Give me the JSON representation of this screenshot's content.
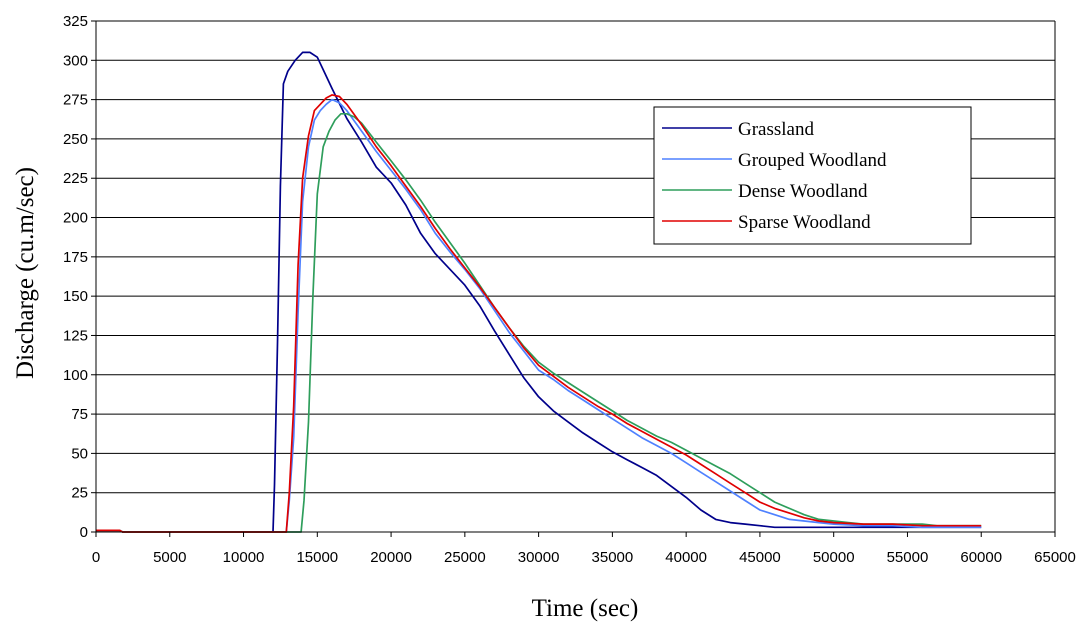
{
  "chart_data": {
    "type": "line",
    "title": "",
    "xlabel": "Time (sec)",
    "ylabel": "Discharge (cu.m/sec)",
    "xlim": [
      0,
      65000
    ],
    "ylim": [
      0,
      325
    ],
    "xticks": [
      "0",
      "5000",
      "10000",
      "15000",
      "20000",
      "25000",
      "30000",
      "35000",
      "40000",
      "45000",
      "50000",
      "55000",
      "60000",
      "65000"
    ],
    "yticks": [
      "0",
      "25",
      "50",
      "75",
      "100",
      "125",
      "150",
      "175",
      "200",
      "225",
      "250",
      "275",
      "300",
      "325"
    ],
    "grid": "horizontal",
    "legend_position": "right",
    "series": [
      {
        "name": "Grassland",
        "color": "#00008B",
        "x": [
          0,
          1600,
          1800,
          12000,
          12100,
          12300,
          12500,
          12700,
          13000,
          13500,
          14000,
          14500,
          15000,
          15500,
          16000,
          17000,
          18000,
          19000,
          20000,
          21000,
          22000,
          23000,
          24000,
          25000,
          26000,
          27000,
          28000,
          29000,
          30000,
          31000,
          32000,
          33000,
          34000,
          35000,
          36000,
          37000,
          38000,
          39000,
          40000,
          41000,
          42000,
          43000,
          44000,
          45000,
          46000,
          47000,
          48000,
          49000,
          50000,
          51000,
          52000,
          53000,
          54000,
          55000,
          56000,
          57000,
          58000,
          59000,
          60000
        ],
        "y": [
          1,
          1,
          0,
          0,
          30,
          120,
          220,
          285,
          293,
          300,
          305,
          305,
          302,
          292,
          282,
          263,
          248,
          232,
          222,
          208,
          190,
          177,
          167,
          157,
          144,
          128,
          113,
          98,
          86,
          77,
          70,
          63,
          57,
          51,
          46,
          41,
          36,
          29,
          22,
          14,
          8,
          6,
          5,
          4,
          3,
          3,
          3,
          3,
          3,
          3,
          3,
          3,
          3,
          3,
          3,
          3,
          3,
          3,
          3
        ]
      },
      {
        "name": "Grouped Woodland",
        "color": "#4F81FF",
        "x": [
          0,
          1600,
          1800,
          12900,
          13100,
          13400,
          13700,
          14000,
          14400,
          14800,
          15200,
          15600,
          16000,
          16500,
          17000,
          18000,
          19000,
          20000,
          21000,
          22000,
          23000,
          24000,
          25000,
          26000,
          27000,
          28000,
          29000,
          30000,
          31000,
          32000,
          33000,
          34000,
          35000,
          36000,
          37000,
          38000,
          39000,
          40000,
          41000,
          42000,
          43000,
          44000,
          45000,
          46000,
          47000,
          48000,
          49000,
          50000,
          52000,
          54000,
          56000,
          58000,
          60000
        ],
        "y": [
          1,
          1,
          0,
          0,
          20,
          60,
          140,
          210,
          245,
          262,
          268,
          272,
          275,
          273,
          268,
          255,
          242,
          230,
          218,
          205,
          190,
          178,
          167,
          155,
          141,
          127,
          115,
          103,
          97,
          90,
          84,
          78,
          72,
          66,
          60,
          55,
          50,
          44,
          38,
          32,
          26,
          20,
          14,
          11,
          8,
          7,
          6,
          5,
          4,
          4,
          3,
          3,
          3
        ]
      },
      {
        "name": "Dense Woodland",
        "color": "#2E9E5B",
        "x": [
          0,
          1600,
          1800,
          13900,
          14100,
          14400,
          14700,
          15000,
          15400,
          15800,
          16200,
          16600,
          17000,
          17500,
          18000,
          19000,
          20000,
          21000,
          22000,
          23000,
          24000,
          25000,
          26000,
          27000,
          28000,
          29000,
          30000,
          31000,
          32000,
          33000,
          34000,
          35000,
          36000,
          37000,
          38000,
          39000,
          40000,
          41000,
          42000,
          43000,
          44000,
          45000,
          46000,
          47000,
          48000,
          49000,
          50000,
          51000,
          52000,
          53000,
          54000,
          55000,
          56000,
          57000,
          58000,
          59000,
          60000
        ],
        "y": [
          1,
          1,
          0,
          0,
          20,
          70,
          150,
          215,
          245,
          255,
          262,
          266,
          266,
          264,
          260,
          248,
          236,
          224,
          211,
          197,
          184,
          171,
          157,
          143,
          130,
          118,
          108,
          101,
          95,
          89,
          83,
          77,
          71,
          66,
          61,
          57,
          52,
          47,
          42,
          37,
          31,
          25,
          19,
          15,
          11,
          8,
          7,
          6,
          5,
          5,
          5,
          5,
          5,
          4,
          4,
          4,
          4
        ]
      },
      {
        "name": "Sparse Woodland",
        "color": "#E00000",
        "x": [
          0,
          1600,
          1800,
          12900,
          13100,
          13400,
          13700,
          14000,
          14400,
          14800,
          15200,
          15600,
          16000,
          16500,
          17000,
          18000,
          19000,
          20000,
          21000,
          22000,
          23000,
          24000,
          25000,
          26000,
          27000,
          28000,
          29000,
          30000,
          31000,
          32000,
          33000,
          34000,
          35000,
          36000,
          37000,
          38000,
          39000,
          40000,
          41000,
          42000,
          43000,
          44000,
          45000,
          46000,
          47000,
          48000,
          49000,
          50000,
          52000,
          54000,
          56000,
          58000,
          60000
        ],
        "y": [
          1,
          1,
          0,
          0,
          25,
          80,
          170,
          225,
          252,
          268,
          272,
          276,
          278,
          277,
          272,
          259,
          245,
          233,
          220,
          207,
          193,
          180,
          168,
          156,
          143,
          130,
          117,
          106,
          99,
          92,
          86,
          80,
          75,
          69,
          64,
          59,
          54,
          49,
          43,
          37,
          31,
          25,
          19,
          15,
          12,
          9,
          7,
          6,
          5,
          5,
          4,
          4,
          4
        ]
      }
    ]
  }
}
